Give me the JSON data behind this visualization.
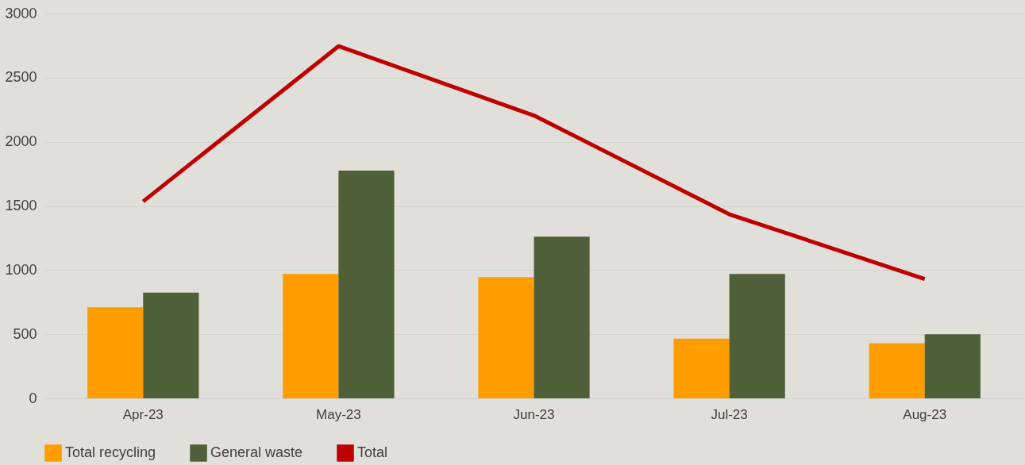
{
  "chart_data": {
    "type": "bar",
    "categories": [
      "Apr-23",
      "May-23",
      "Jun-23",
      "Jul-23",
      "Aug-23"
    ],
    "series": [
      {
        "name": "Total recycling",
        "color": "#ff9c00",
        "values": [
          710,
          970,
          945,
          465,
          430
        ]
      },
      {
        "name": "General waste",
        "color": "#4f5f37",
        "values": [
          825,
          1775,
          1260,
          970,
          500
        ]
      },
      {
        "name": "Total",
        "type": "line",
        "color": "#c00000",
        "values": [
          1535,
          2745,
          2205,
          1435,
          930
        ]
      }
    ],
    "ylim": [
      0,
      3000
    ],
    "yticks": [
      0,
      500,
      1000,
      1500,
      2000,
      2500,
      3000
    ],
    "grid": "y",
    "legend": "bottom"
  }
}
